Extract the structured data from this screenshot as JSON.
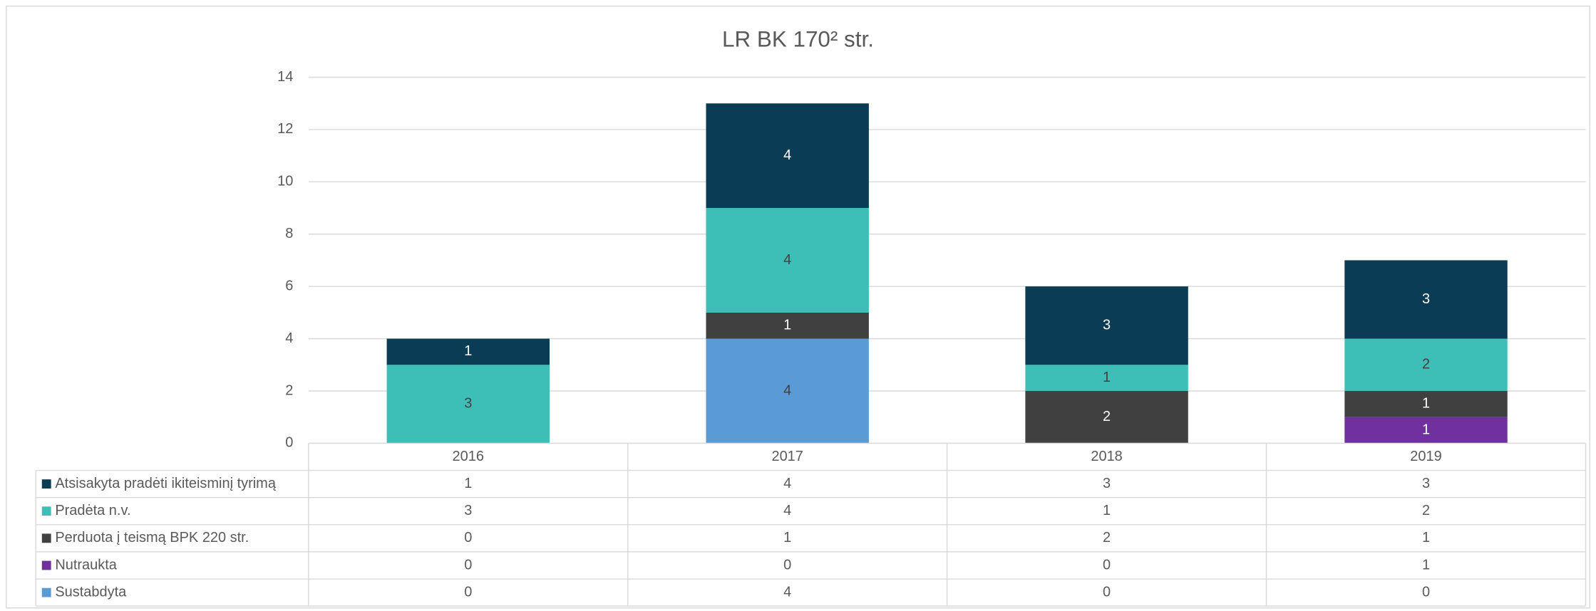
{
  "chart_data": {
    "type": "bar",
    "stacked": true,
    "data_table": true,
    "title": "LR BK 170² str.",
    "categories": [
      "2016",
      "2017",
      "2018",
      "2019"
    ],
    "series": [
      {
        "name": "Atsisakyta pradėti ikiteisminį tyrimą",
        "color": "#0b3c55",
        "values": [
          1,
          4,
          3,
          3
        ]
      },
      {
        "name": "Pradėta n.v.",
        "color": "#3dbfb8",
        "values": [
          3,
          4,
          1,
          2
        ]
      },
      {
        "name": "Perduota į teismą BPK 220 str.",
        "color": "#404040",
        "values": [
          0,
          1,
          2,
          1
        ]
      },
      {
        "name": "Nutraukta",
        "color": "#7030a0",
        "values": [
          0,
          0,
          0,
          1
        ]
      },
      {
        "name": "Sustabdyta",
        "color": "#5b9bd5",
        "values": [
          0,
          4,
          0,
          0
        ]
      }
    ],
    "ylim": [
      0,
      14
    ],
    "yticks": [
      0,
      2,
      4,
      6,
      8,
      10,
      12,
      14
    ],
    "grid": true
  }
}
